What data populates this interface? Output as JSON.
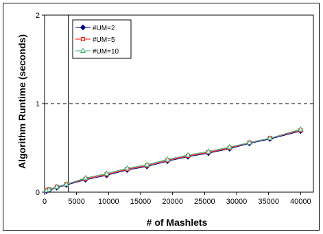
{
  "chart_data": {
    "type": "line",
    "xlabel": "# of Mashlets",
    "ylabel": "Algorithm Runtime (seconds)",
    "xlim": [
      0,
      42000
    ],
    "ylim": [
      0,
      2
    ],
    "x_ticks": [
      0,
      5000,
      10000,
      15000,
      20000,
      25000,
      30000,
      35000,
      40000
    ],
    "x_tick_labels": [
      "0",
      "5000",
      "10000",
      "15000",
      "20000",
      "25000",
      "30000",
      "35000",
      "40000"
    ],
    "y_ticks": [
      0,
      1,
      2
    ],
    "y_tick_labels": [
      "0",
      "1",
      "2"
    ],
    "reference_lines": [
      {
        "orientation": "horizontal",
        "value": 1,
        "style": "dashed"
      },
      {
        "orientation": "vertical",
        "value": 3700,
        "style": "solid"
      }
    ],
    "grid": false,
    "legend_position": "top-left",
    "series": [
      {
        "name": "#UM=2",
        "color": "#00008B",
        "marker": "diamond",
        "x": [
          300,
          700,
          1900,
          3400,
          6400,
          9700,
          12900,
          16000,
          19200,
          22400,
          25600,
          28900,
          32000,
          35200,
          40000
        ],
        "y": [
          0.01,
          0.02,
          0.05,
          0.08,
          0.14,
          0.19,
          0.25,
          0.29,
          0.35,
          0.4,
          0.44,
          0.49,
          0.55,
          0.6,
          0.69
        ]
      },
      {
        "name": "#UM=5",
        "color": "#FF0000",
        "marker": "square",
        "x": [
          300,
          700,
          1900,
          3400,
          6400,
          9700,
          12900,
          16000,
          19200,
          22400,
          25600,
          28900,
          32000,
          35200,
          40000
        ],
        "y": [
          0.02,
          0.03,
          0.06,
          0.09,
          0.15,
          0.2,
          0.26,
          0.3,
          0.36,
          0.41,
          0.45,
          0.5,
          0.56,
          0.61,
          0.7
        ]
      },
      {
        "name": "#UM=10",
        "color": "#3CB371",
        "marker": "triangle",
        "x": [
          300,
          700,
          1900,
          3400,
          6400,
          9700,
          12900,
          16000,
          19200,
          22400,
          25600,
          28900,
          32000,
          35200,
          40000
        ],
        "y": [
          0.02,
          0.03,
          0.06,
          0.09,
          0.16,
          0.21,
          0.27,
          0.31,
          0.37,
          0.42,
          0.46,
          0.51,
          0.56,
          0.61,
          0.71
        ]
      }
    ]
  }
}
